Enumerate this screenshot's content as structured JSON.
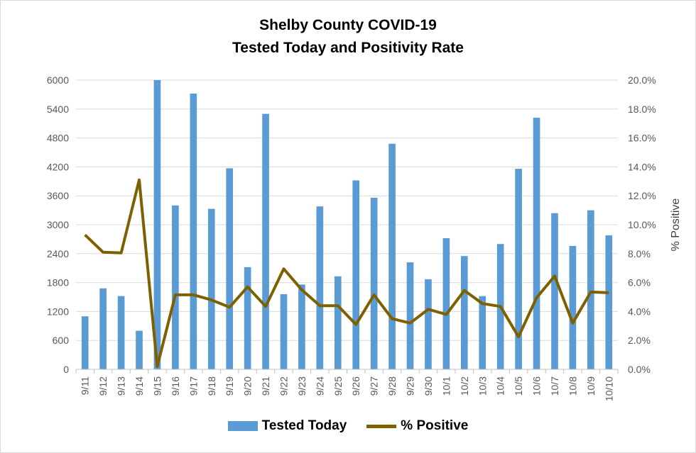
{
  "chart_data": {
    "type": "bar",
    "title": [
      "Shelby County COVID-19",
      "Tested Today and Positivity Rate"
    ],
    "categories": [
      "9/11",
      "9/12",
      "9/13",
      "9/14",
      "9/15",
      "9/16",
      "9/17",
      "9/18",
      "9/19",
      "9/20",
      "9/21",
      "9/22",
      "9/23",
      "9/24",
      "9/25",
      "9/26",
      "9/27",
      "9/28",
      "9/29",
      "9/30",
      "10/1",
      "10/2",
      "10/3",
      "10/4",
      "10/5",
      "10/6",
      "10/7",
      "10/8",
      "10/9",
      "10/10"
    ],
    "series": [
      {
        "name": "Tested Today",
        "type": "bar",
        "axis": "left",
        "color": "#5b9bd5",
        "values": [
          1100,
          1680,
          1520,
          800,
          6000,
          3400,
          5720,
          3330,
          4170,
          2120,
          5300,
          1560,
          1760,
          3380,
          1930,
          3920,
          3560,
          4680,
          2220,
          1870,
          2720,
          2350,
          1520,
          2600,
          4160,
          5220,
          3240,
          2560,
          3300,
          2780
        ]
      },
      {
        "name": "% Positive",
        "type": "line",
        "axis": "right",
        "color": "#7f6000",
        "values": [
          9.3,
          8.1,
          8.05,
          13.1,
          0.2,
          5.15,
          5.15,
          4.8,
          4.3,
          5.7,
          4.35,
          6.95,
          5.5,
          4.4,
          4.4,
          3.1,
          5.15,
          3.5,
          3.2,
          4.15,
          3.8,
          5.45,
          4.55,
          4.35,
          2.25,
          4.95,
          6.45,
          3.2,
          5.35,
          5.3
        ]
      }
    ],
    "y_left": {
      "min": 0,
      "max": 6000,
      "ticks": [
        "0",
        "600",
        "1200",
        "1800",
        "2400",
        "3000",
        "3600",
        "4200",
        "4800",
        "5400",
        "6000"
      ]
    },
    "y_right": {
      "min": 0,
      "max": 20,
      "label": "% Positive",
      "ticks": [
        "0.0%",
        "2.0%",
        "4.0%",
        "6.0%",
        "8.0%",
        "10.0%",
        "12.0%",
        "14.0%",
        "16.0%",
        "18.0%",
        "20.0%"
      ]
    },
    "grid": true,
    "legend_position": "bottom"
  }
}
